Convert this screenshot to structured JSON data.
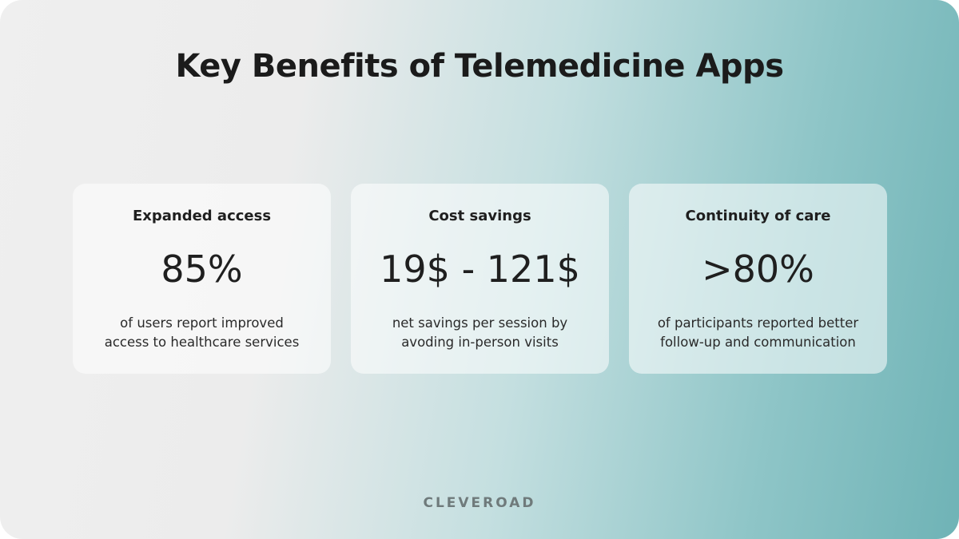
{
  "header": {
    "title": "Key Benefits of Telemedicine Apps"
  },
  "cards": [
    {
      "heading": "Expanded access",
      "stat": "85%",
      "description": [
        "of users report improved",
        "access to healthcare services"
      ]
    },
    {
      "heading": "Cost savings",
      "stat": "19$ - 121$",
      "description": [
        "net savings per session by",
        "avoding in-person visits"
      ]
    },
    {
      "heading": "Continuity of care",
      "stat": ">80%",
      "description": [
        "of participants reported better",
        "follow-up and communication"
      ]
    }
  ],
  "footer": {
    "brand": "CLEVEROAD"
  }
}
